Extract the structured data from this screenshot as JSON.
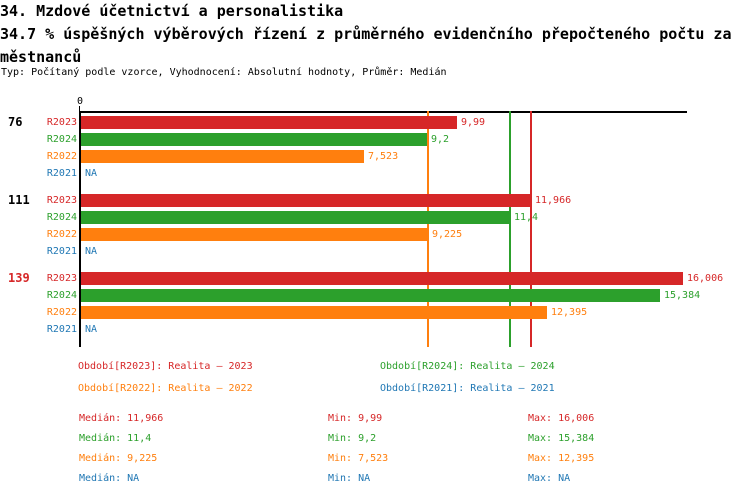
{
  "header": {
    "title": "34. Mzdové účetnictví a personalistika",
    "subtitle_line_1": "34.7 % úspěšných výběrových řízení z průměrného evidenčního přepočteného počtu za",
    "subtitle_line_2": "městnanců",
    "meta_line": "Typ: Počítaný podle vzorce, Vyhodnocení: Absolutní hodnoty, Průměr: Medián"
  },
  "colors": {
    "r2023": "#d62728",
    "r2024": "#2ca02c",
    "r2022": "#ff7f0e",
    "r2021": "#1f77b4",
    "axis": "#000000",
    "highlight_group": "#d62728"
  },
  "chart_data": {
    "type": "bar",
    "orientation": "horizontal",
    "title": "34. Mzdové účetnictví a personalistika",
    "xlabel": "",
    "ylabel": "",
    "xlim": [
      0,
      16.14
    ],
    "origin_tick_label": "0",
    "grid": false,
    "series_order": [
      "R2023",
      "R2024",
      "R2022",
      "R2021"
    ],
    "series_colors": {
      "R2023": "#d62728",
      "R2024": "#2ca02c",
      "R2022": "#ff7f0e",
      "R2021": "#1f77b4"
    },
    "groups": [
      {
        "label": "76",
        "label_color": "#000000",
        "rows": [
          {
            "series": "R2023",
            "value": 9.99,
            "value_label": "9,99",
            "color": "#d62728"
          },
          {
            "series": "R2024",
            "value": 9.2,
            "value_label": "9,2",
            "color": "#2ca02c"
          },
          {
            "series": "R2022",
            "value": 7.523,
            "value_label": "7,523",
            "color": "#ff7f0e"
          },
          {
            "series": "R2021",
            "value": null,
            "value_label": "NA",
            "color": "#1f77b4"
          }
        ]
      },
      {
        "label": "111",
        "label_color": "#000000",
        "rows": [
          {
            "series": "R2023",
            "value": 11.966,
            "value_label": "11,966",
            "color": "#d62728"
          },
          {
            "series": "R2024",
            "value": 11.4,
            "value_label": "11,4",
            "color": "#2ca02c"
          },
          {
            "series": "R2022",
            "value": 9.225,
            "value_label": "9,225",
            "color": "#ff7f0e"
          },
          {
            "series": "R2021",
            "value": null,
            "value_label": "NA",
            "color": "#1f77b4"
          }
        ]
      },
      {
        "label": "139",
        "label_color": "#d62728",
        "rows": [
          {
            "series": "R2023",
            "value": 16.006,
            "value_label": "16,006",
            "color": "#d62728"
          },
          {
            "series": "R2024",
            "value": 15.384,
            "value_label": "15,384",
            "color": "#2ca02c"
          },
          {
            "series": "R2022",
            "value": 12.395,
            "value_label": "12,395",
            "color": "#ff7f0e"
          },
          {
            "series": "R2021",
            "value": null,
            "value_label": "NA",
            "color": "#1f77b4"
          }
        ]
      }
    ],
    "median_lines": [
      {
        "value": 9.225,
        "color": "#ff7f0e"
      },
      {
        "value": 11.4,
        "color": "#2ca02c"
      },
      {
        "value": 11.966,
        "color": "#d62728"
      }
    ],
    "legend": [
      {
        "label": "Období[R2023]: Realita – 2023",
        "color": "#d62728",
        "row": 0,
        "col": 0
      },
      {
        "label": "Období[R2024]: Realita – 2024",
        "color": "#2ca02c",
        "row": 0,
        "col": 1
      },
      {
        "label": "Období[R2022]: Realita – 2022",
        "color": "#ff7f0e",
        "row": 1,
        "col": 0
      },
      {
        "label": "Období[R2021]: Realita – 2021",
        "color": "#1f77b4",
        "row": 1,
        "col": 1
      }
    ],
    "stats": [
      {
        "median": "Medián: 11,966",
        "min": "Min: 9,99",
        "max": "Max: 16,006",
        "color": "#d62728"
      },
      {
        "median": "Medián: 11,4",
        "min": "Min: 9,2",
        "max": "Max: 15,384",
        "color": "#2ca02c"
      },
      {
        "median": "Medián: 9,225",
        "min": "Min: 7,523",
        "max": "Max: 12,395",
        "color": "#ff7f0e"
      },
      {
        "median": "Medián: NA",
        "min": "Min: NA",
        "max": "Max: NA",
        "color": "#1f77b4"
      }
    ]
  }
}
